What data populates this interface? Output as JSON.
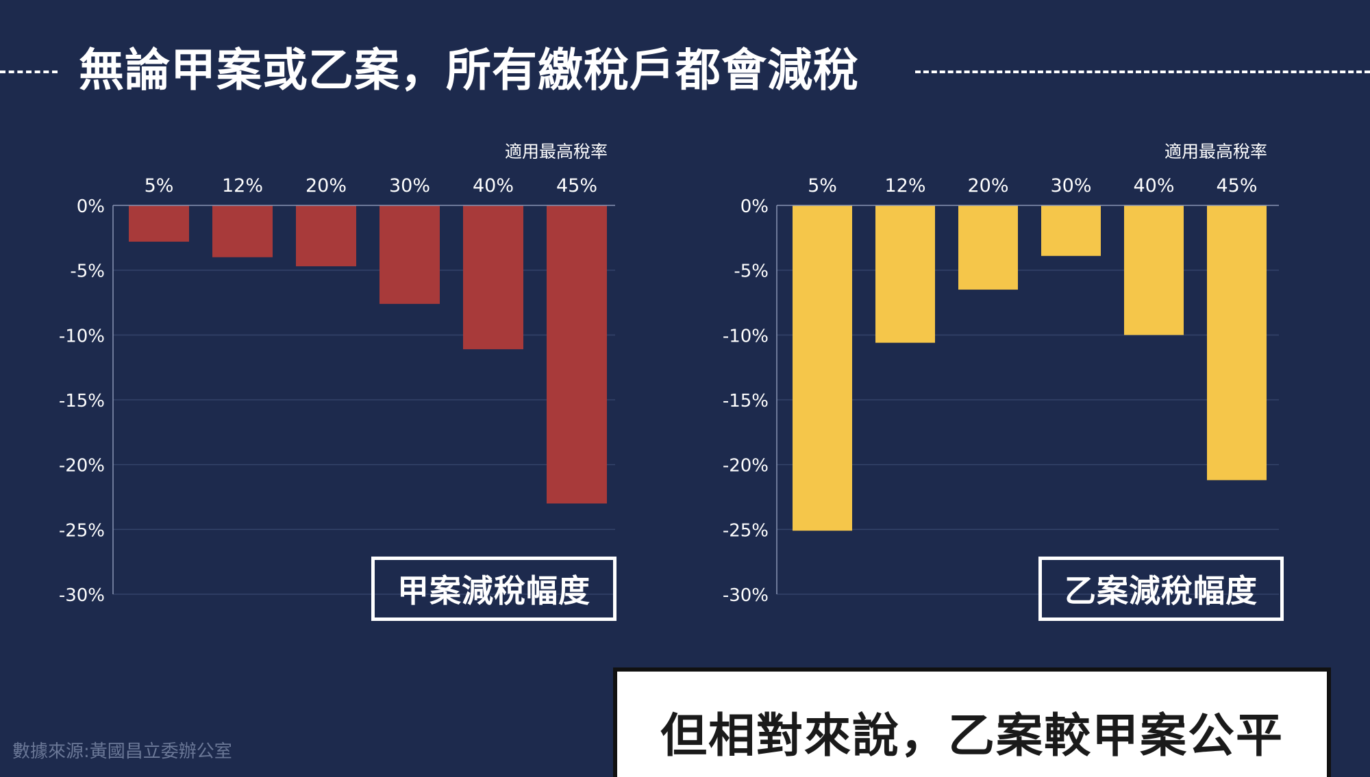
{
  "title": "無論甲案或乙案，所有繳稅戶都會減稅",
  "conclusion": "但相對來說，乙案較甲案公平",
  "source": "數據來源:黃國昌立委辦公室",
  "colors": {
    "background": "#1d2a4d",
    "series_a": "#a83a3a",
    "series_b": "#f5c64a",
    "text": "#ffffff",
    "gridline": "#34436a"
  },
  "chart_data": [
    {
      "type": "bar",
      "xlabel": "適用最高稅率",
      "ylabel": "",
      "categories": [
        "5%",
        "12%",
        "20%",
        "30%",
        "40%",
        "45%"
      ],
      "series": [
        {
          "name": "甲案減稅幅度",
          "values": [
            -2.8,
            -4.0,
            -4.7,
            -7.6,
            -11.1,
            -23.0
          ]
        }
      ],
      "ylim": [
        -30,
        0
      ],
      "yticks": [
        "0%",
        "-5%",
        "-10%",
        "-15%",
        "-20%",
        "-25%",
        "-30%"
      ],
      "grid": true,
      "x_axis_position": "top",
      "legend": "bottom-right",
      "color": "#a83a3a"
    },
    {
      "type": "bar",
      "xlabel": "適用最高稅率",
      "ylabel": "",
      "categories": [
        "5%",
        "12%",
        "20%",
        "30%",
        "40%",
        "45%"
      ],
      "series": [
        {
          "name": "乙案減稅幅度",
          "values": [
            -25.1,
            -10.6,
            -6.5,
            -3.9,
            -10.0,
            -21.2
          ]
        }
      ],
      "ylim": [
        -30,
        0
      ],
      "yticks": [
        "0%",
        "-5%",
        "-10%",
        "-15%",
        "-20%",
        "-25%",
        "-30%"
      ],
      "grid": true,
      "x_axis_position": "top",
      "legend": "bottom-right",
      "color": "#f5c64a"
    }
  ]
}
